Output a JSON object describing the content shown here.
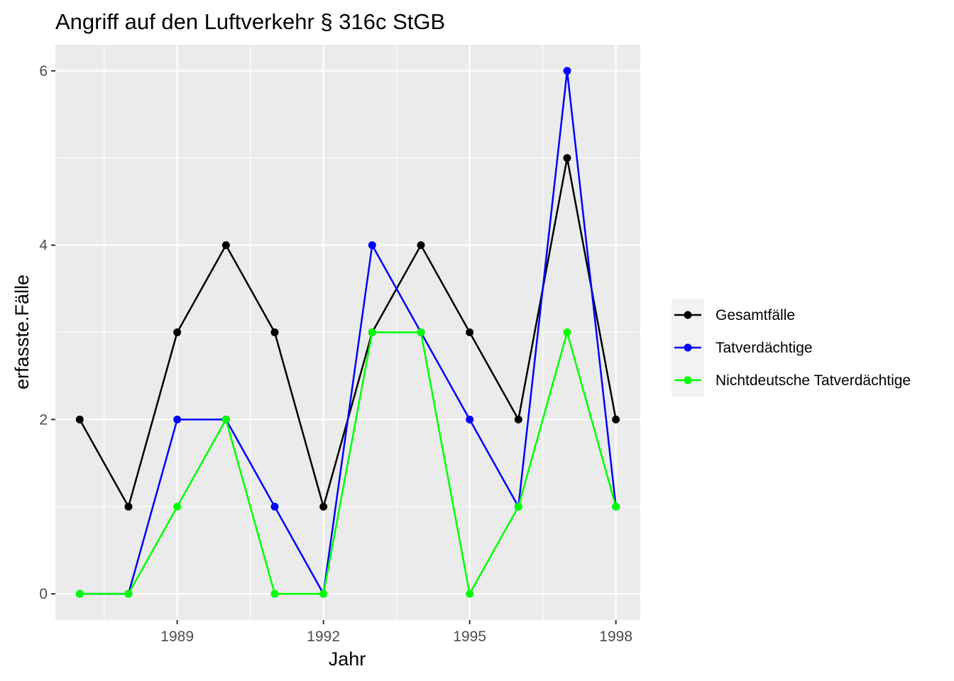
{
  "chart_data": {
    "type": "line",
    "title": "Angriff auf den Luftverkehr § 316c StGB",
    "xlabel": "Jahr",
    "ylabel": "erfasste.Fälle",
    "x": [
      1987,
      1988,
      1989,
      1990,
      1991,
      1992,
      1993,
      1994,
      1995,
      1996,
      1997,
      1998
    ],
    "xlim": [
      1986.5,
      1998.5
    ],
    "ylim": [
      -0.3,
      6.3
    ],
    "x_ticks": [
      1989,
      1992,
      1995,
      1998
    ],
    "y_ticks": [
      0,
      2,
      4,
      6
    ],
    "grid": true,
    "legend_position": "right",
    "series": [
      {
        "name": "Gesamtfälle",
        "color": "#000000",
        "values": [
          2,
          1,
          3,
          4,
          3,
          1,
          3,
          4,
          3,
          2,
          5,
          2
        ]
      },
      {
        "name": "Tatverdächtige",
        "color": "#0000ff",
        "values": [
          0,
          0,
          2,
          2,
          1,
          0,
          4,
          3,
          2,
          1,
          6,
          1
        ]
      },
      {
        "name": "Nichtdeutsche Tatverdächtige",
        "color": "#00ff00",
        "values": [
          0,
          0,
          1,
          2,
          0,
          0,
          3,
          3,
          0,
          1,
          3,
          1
        ]
      }
    ]
  }
}
